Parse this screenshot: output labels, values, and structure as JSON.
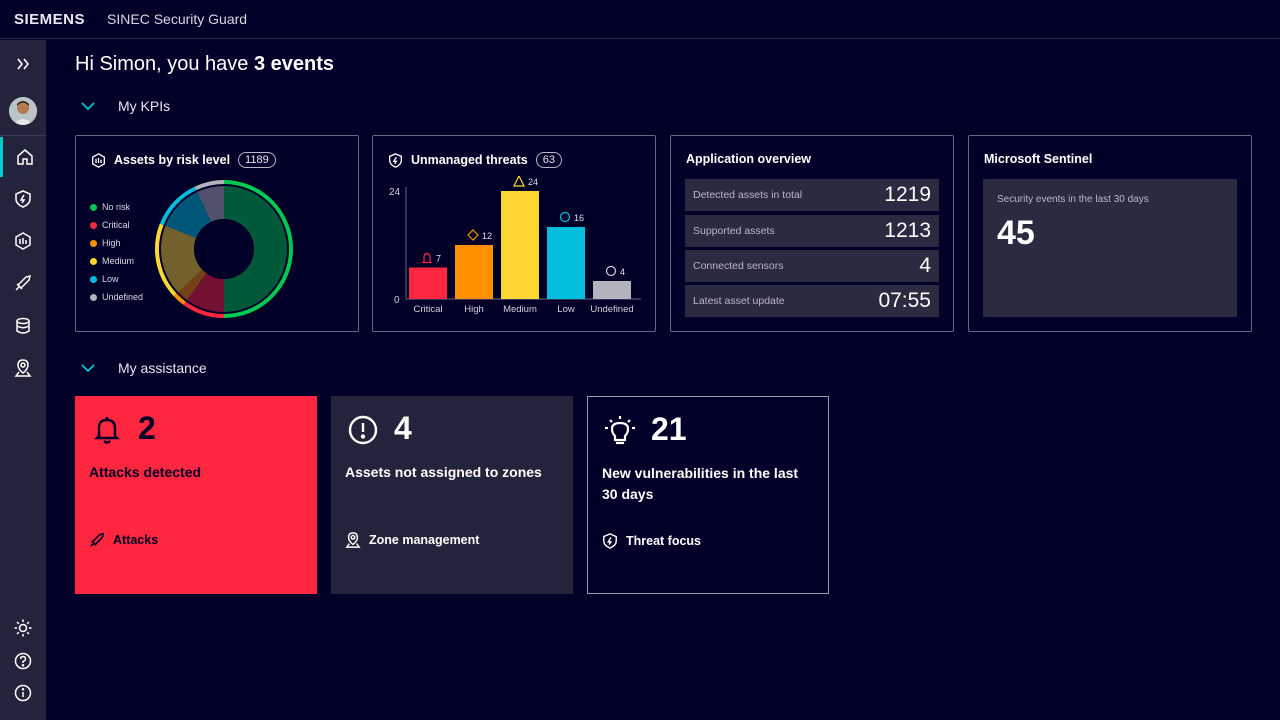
{
  "header": {
    "brand": "SIEMENS",
    "app_title": "SINEC Security Guard"
  },
  "sidebar": {
    "items": [
      {
        "name": "expand",
        "icon": "double-chevron-right-icon"
      },
      {
        "name": "home",
        "icon": "home-icon",
        "active": true
      },
      {
        "name": "threats",
        "icon": "shield-bolt-icon"
      },
      {
        "name": "assets",
        "icon": "hexagon-bars-icon"
      },
      {
        "name": "attacks",
        "icon": "sword-icon"
      },
      {
        "name": "database",
        "icon": "database-icon"
      },
      {
        "name": "zones",
        "icon": "location-pin-icon"
      }
    ],
    "bottom": [
      {
        "name": "theme",
        "icon": "sun-icon"
      },
      {
        "name": "help",
        "icon": "question-circle-icon"
      },
      {
        "name": "info",
        "icon": "info-circle-icon"
      }
    ]
  },
  "greeting": {
    "prefix": "Hi Simon, you have ",
    "emphasis": "3 events"
  },
  "sections": {
    "kpis": "My KPIs",
    "assistance": "My assistance"
  },
  "kpi_cards": {
    "risk": {
      "title": "Assets by risk level",
      "count": "1189",
      "legend": [
        "No risk",
        "Critical",
        "High",
        "Medium",
        "Low",
        "Undefined"
      ]
    },
    "threats": {
      "title": "Unmanaged threats",
      "count": "63",
      "y_max_label": "24",
      "y_min_label": "0"
    },
    "overview": {
      "title": "Application overview",
      "rows": [
        {
          "label": "Detected assets in total",
          "value": "1219"
        },
        {
          "label": "Supported assets",
          "value": "1213"
        },
        {
          "label": "Connected sensors",
          "value": "4"
        },
        {
          "label": "Latest asset update",
          "value": "07:55"
        }
      ]
    },
    "sentinel": {
      "title": "Microsoft Sentinel",
      "label": "Security events in the last 30 days",
      "value": "45"
    }
  },
  "chart_data": [
    {
      "type": "pie",
      "title": "Assets by risk level",
      "categories": [
        "No risk",
        "Critical",
        "High",
        "Medium",
        "Low",
        "Undefined"
      ],
      "values": [
        50,
        10,
        3,
        18,
        12,
        7
      ],
      "colors": [
        "#00c850",
        "#ff2640",
        "#ff9000",
        "#ffd732",
        "#00bedc",
        "#b3b3be"
      ]
    },
    {
      "type": "bar",
      "title": "Unmanaged threats",
      "categories": [
        "Critical",
        "High",
        "Medium",
        "Low",
        "Undefined"
      ],
      "values": [
        7,
        12,
        24,
        16,
        4
      ],
      "ylim": [
        0,
        24
      ],
      "colors": [
        "#ff2640",
        "#ff9000",
        "#ffd732",
        "#00bedc",
        "#b3b3be"
      ]
    }
  ],
  "assistance": [
    {
      "count": "2",
      "description": "Attacks detected",
      "link": "Attacks",
      "icon": "bell-icon",
      "link_icon": "sword-icon",
      "bg": "#ff2640"
    },
    {
      "count": "4",
      "description": "Assets not assigned to zones",
      "link": "Zone management",
      "icon": "exclamation-circle-icon",
      "link_icon": "location-pin-icon",
      "bg": "#23233c"
    },
    {
      "count": "21",
      "description": "New vulnerabilities in the last 30 days",
      "link": "Threat focus",
      "icon": "lightbulb-icon",
      "link_icon": "shield-bolt-icon",
      "bg": "#000028"
    }
  ]
}
